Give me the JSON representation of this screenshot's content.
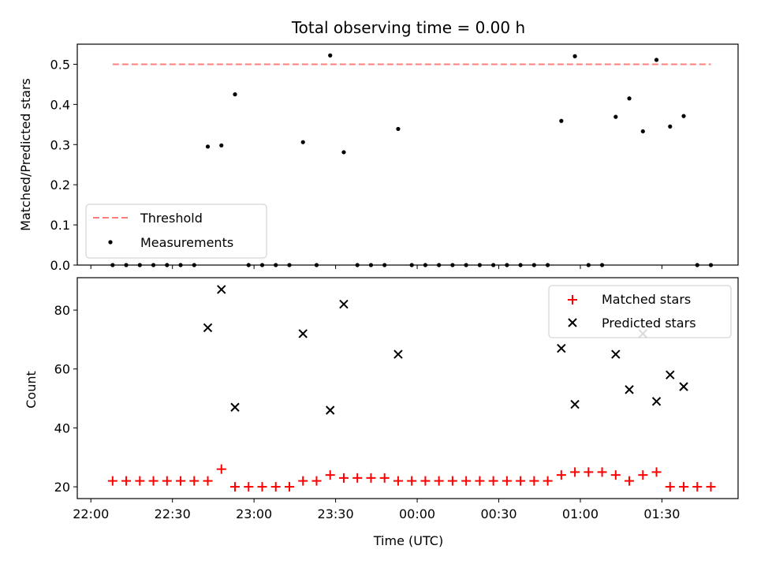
{
  "chart_data": [
    {
      "type": "scatter",
      "title": "Total observing time = 0.00 h",
      "ylabel": "Matched/Predicted stars",
      "xlabel": "",
      "xlim": [
        "21:55",
        "01:58"
      ],
      "ylim": [
        0,
        0.55
      ],
      "yticks": [
        "0.0",
        "0.1",
        "0.2",
        "0.3",
        "0.4",
        "0.5"
      ],
      "legend_location": "lower-left",
      "threshold": {
        "name": "Threshold",
        "value": 0.5,
        "x_start": "22:08",
        "x_end": "01:48",
        "color": "#ff7f7f"
      },
      "series": [
        {
          "name": "Measurements",
          "color": "#000000",
          "x": [
            "22:08",
            "22:13",
            "22:18",
            "22:23",
            "22:28",
            "22:33",
            "22:38",
            "22:43",
            "22:48",
            "22:53",
            "22:58",
            "23:03",
            "23:08",
            "23:13",
            "23:18",
            "23:23",
            "23:28",
            "23:33",
            "23:38",
            "23:43",
            "23:48",
            "23:53",
            "23:58",
            "00:03",
            "00:08",
            "00:13",
            "00:18",
            "00:23",
            "00:28",
            "00:33",
            "00:38",
            "00:43",
            "00:48",
            "00:53",
            "00:58",
            "01:03",
            "01:08",
            "01:13",
            "01:18",
            "01:23",
            "01:28",
            "01:33",
            "01:38",
            "01:43",
            "01:48"
          ],
          "y": [
            0,
            0,
            0,
            0,
            0,
            0,
            0,
            0.295,
            0.298,
            0.425,
            0,
            0,
            0,
            0,
            0.306,
            0,
            0.522,
            0.281,
            0,
            0,
            0,
            0.339,
            0,
            0,
            0,
            0,
            0,
            0,
            0,
            0,
            0,
            0,
            0,
            0.359,
            0.52,
            0,
            0,
            0.369,
            0.415,
            0.333,
            0.511,
            0.345,
            0.371,
            0,
            0
          ]
        }
      ]
    },
    {
      "type": "scatter",
      "xlabel": "Time (UTC)",
      "ylabel": "Count",
      "xlim": [
        "21:55",
        "01:58"
      ],
      "ylim": [
        16,
        91
      ],
      "xticks": [
        "22:00",
        "22:30",
        "23:00",
        "23:30",
        "00:00",
        "00:30",
        "01:00",
        "01:30"
      ],
      "yticks": [
        "20",
        "40",
        "60",
        "80"
      ],
      "legend_location": "upper-right",
      "series": [
        {
          "name": "Matched stars",
          "color": "#ff0000",
          "marker": "+",
          "x": [
            "22:08",
            "22:13",
            "22:18",
            "22:23",
            "22:28",
            "22:33",
            "22:38",
            "22:43",
            "22:48",
            "22:53",
            "22:58",
            "23:03",
            "23:08",
            "23:13",
            "23:18",
            "23:23",
            "23:28",
            "23:33",
            "23:38",
            "23:43",
            "23:48",
            "23:53",
            "23:58",
            "00:03",
            "00:08",
            "00:13",
            "00:18",
            "00:23",
            "00:28",
            "00:33",
            "00:38",
            "00:43",
            "00:48",
            "00:53",
            "00:58",
            "01:03",
            "01:08",
            "01:13",
            "01:18",
            "01:23",
            "01:28",
            "01:33",
            "01:38",
            "01:43",
            "01:48"
          ],
          "y": [
            22,
            22,
            22,
            22,
            22,
            22,
            22,
            22,
            26,
            20,
            20,
            20,
            20,
            20,
            22,
            22,
            24,
            23,
            23,
            23,
            23,
            22,
            22,
            22,
            22,
            22,
            22,
            22,
            22,
            22,
            22,
            22,
            22,
            24,
            25,
            25,
            25,
            24,
            22,
            24,
            25,
            20,
            20,
            20,
            20
          ]
        },
        {
          "name": "Predicted stars",
          "color": "#000000",
          "marker": "x",
          "x": [
            "22:43",
            "22:48",
            "22:53",
            "23:18",
            "23:28",
            "23:33",
            "23:53",
            "00:53",
            "00:58",
            "01:13",
            "01:18",
            "01:23",
            "01:28",
            "01:33",
            "01:38"
          ],
          "y": [
            74,
            87,
            47,
            72,
            46,
            82,
            65,
            67,
            48,
            65,
            53,
            72,
            49,
            58,
            54
          ]
        }
      ]
    }
  ]
}
